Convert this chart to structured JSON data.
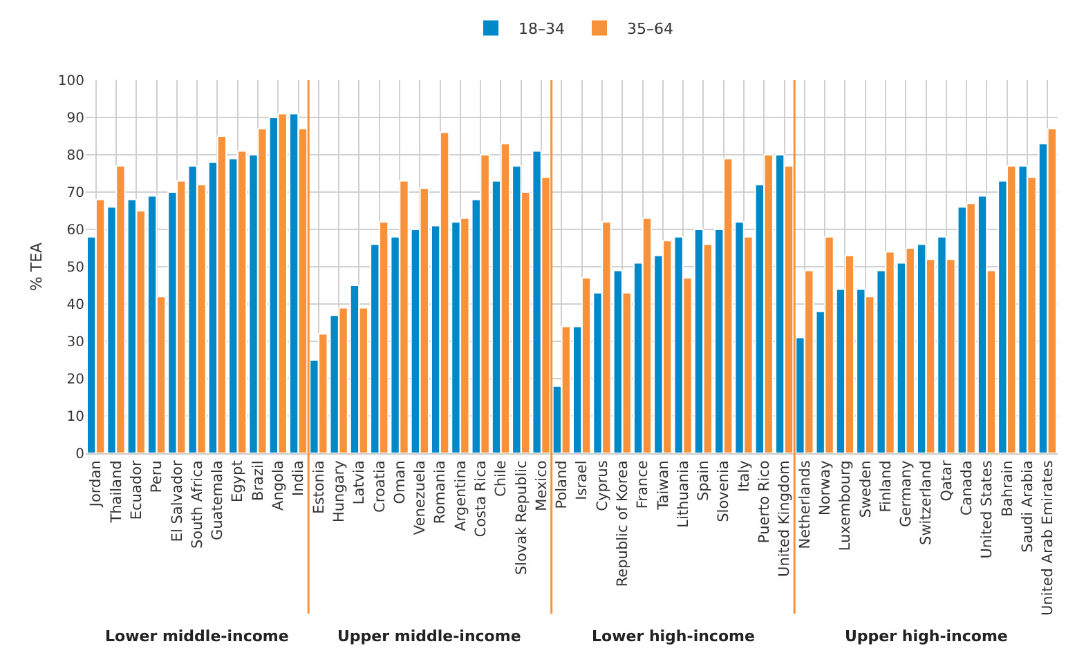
{
  "chart_data": {
    "type": "bar",
    "ylabel": "% TEA",
    "categories": [
      "Jordan",
      "Thailand",
      "Ecuador",
      "Peru",
      "El Salvador",
      "South Africa",
      "Guatemala",
      "Egypt",
      "Brazil",
      "Angola",
      "India",
      "Estonia",
      "Hungary",
      "Latvia",
      "Croatia",
      "Oman",
      "Venezuela",
      "Romania",
      "Argentina",
      "Costa Rica",
      "Chile",
      "Slovak Republic",
      "Mexico",
      "Poland",
      "Israel",
      "Cyprus",
      "Republic of Korea",
      "France",
      "Taiwan",
      "Lithuania",
      "Spain",
      "Slovenia",
      "Italy",
      "Puerto Rico",
      "United Kingdom",
      "Netherlands",
      "Norway",
      "Luxembourg",
      "Sweden",
      "Finland",
      "Germany",
      "Switzerland",
      "Qatar",
      "Canada",
      "United States",
      "Bahrain",
      "Saudi Arabia",
      "United Arab Emirates"
    ],
    "series": [
      {
        "name": "18–34",
        "color": "#0088c8",
        "values": [
          58,
          66,
          68,
          69,
          70,
          77,
          78,
          79,
          80,
          90,
          91,
          25,
          37,
          45,
          56,
          58,
          60,
          61,
          62,
          68,
          73,
          77,
          81,
          18,
          34,
          43,
          49,
          51,
          53,
          58,
          60,
          60,
          62,
          72,
          80,
          31,
          38,
          44,
          44,
          49,
          51,
          56,
          58,
          66,
          69,
          73,
          77,
          83
        ]
      },
      {
        "name": "35–64",
        "color": "#f7913a",
        "values": [
          68,
          77,
          65,
          42,
          73,
          72,
          85,
          81,
          87,
          91,
          87,
          32,
          39,
          39,
          62,
          73,
          71,
          86,
          63,
          80,
          83,
          70,
          74,
          34,
          47,
          62,
          43,
          63,
          57,
          47,
          56,
          79,
          58,
          80,
          77,
          49,
          58,
          53,
          42,
          54,
          55,
          52,
          52,
          67,
          49,
          77,
          74,
          87
        ]
      }
    ],
    "ylim": [
      0,
      100
    ],
    "yticks": [
      0,
      10,
      20,
      30,
      40,
      50,
      60,
      70,
      80,
      90,
      100
    ],
    "grid": true,
    "legend": "top",
    "annotations": [
      "Lower middle-income",
      "Upper middle-income",
      "Lower high-income",
      "Upper high-income"
    ]
  }
}
